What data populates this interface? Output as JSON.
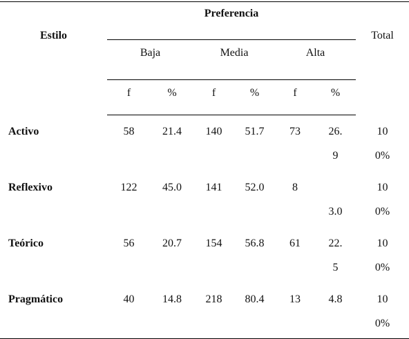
{
  "table": {
    "header": {
      "estilo": "Estilo",
      "preferencia": "Preferencia",
      "total": "Total",
      "groups": [
        "Baja",
        "Media",
        "Alta"
      ],
      "subheaders": [
        "f",
        "%",
        "f",
        "%",
        "f",
        "%"
      ]
    },
    "rows": [
      {
        "label": "Activo",
        "cells": [
          "58",
          "21.4",
          "140",
          "51.7",
          "73",
          "26.9",
          "100%"
        ]
      },
      {
        "label": "Reflexivo",
        "cells": [
          "122",
          "45.0",
          "141",
          "52.0",
          "8",
          "3.0",
          "100%"
        ]
      },
      {
        "label": "Teórico",
        "cells": [
          "56",
          "20.7",
          "154",
          "56.8",
          "61",
          "22.5",
          "100%"
        ]
      },
      {
        "label": "Pragmático",
        "cells": [
          "40",
          "14.8",
          "218",
          "80.4",
          "13",
          "4.8",
          "100%"
        ]
      }
    ]
  }
}
